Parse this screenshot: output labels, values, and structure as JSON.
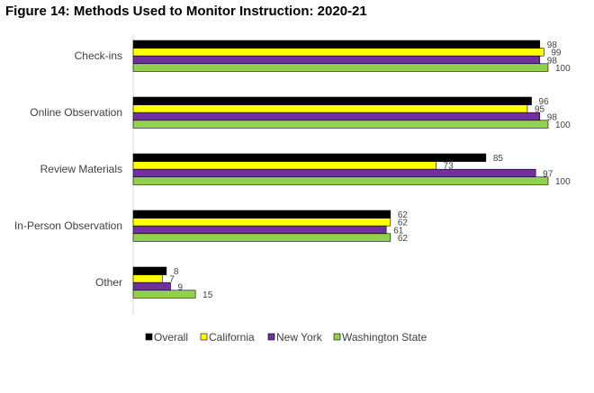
{
  "chart_data": {
    "type": "bar",
    "orientation": "horizontal",
    "title": "Figure 14: Methods Used to Monitor Instruction: 2020-21",
    "categories": [
      "Check-ins",
      "Online Observation",
      "Review Materials",
      "In-Person Observation",
      "Other"
    ],
    "series": [
      {
        "name": "Overall",
        "color": "#000000",
        "values": [
          98,
          96,
          85,
          62,
          8
        ]
      },
      {
        "name": "California",
        "color": "#ffff00",
        "values": [
          99,
          95,
          73,
          62,
          7
        ]
      },
      {
        "name": "New York",
        "color": "#7030a0",
        "values": [
          98,
          98,
          97,
          61,
          9
        ]
      },
      {
        "name": "Washington State",
        "color": "#92d050",
        "values": [
          100,
          100,
          100,
          62,
          15
        ]
      }
    ],
    "xlim": [
      0,
      100
    ],
    "grid": false,
    "legend_position": "bottom"
  }
}
